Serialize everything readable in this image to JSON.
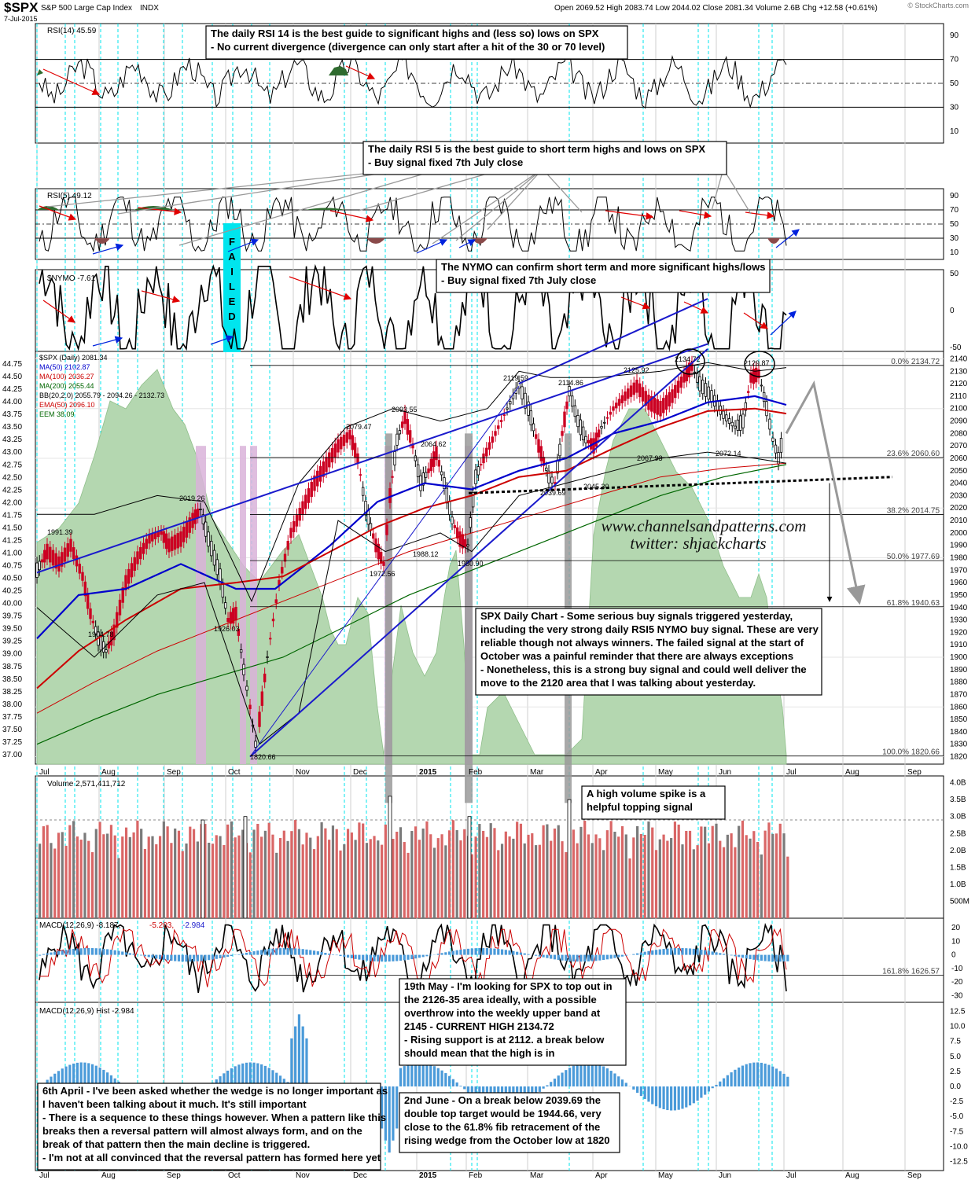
{
  "header": {
    "symbol": "$SPX",
    "name": "S&P 500 Large Cap Index",
    "exchange": "INDX",
    "date": "7-Jul-2015",
    "ohlc": "Open 2069.52  High 2083.74  Low 2044.02  Close 2081.34  Volume 2.6B  Chg +12.58 (+0.61%)",
    "brand": "© StockCharts.com",
    "brand_change_arrow": "▲"
  },
  "panels": {
    "rsi14": {
      "label": "RSI(14) 45.59",
      "ticks": [
        "90",
        "70",
        "50",
        "30",
        "10"
      ]
    },
    "rsi5": {
      "label": "RSI(5) 49.12",
      "ticks": [
        "90",
        "70",
        "50",
        "30",
        "10"
      ]
    },
    "nymo": {
      "label": "$NYMO -7.61",
      "ticks": [
        "50",
        "0",
        "-50"
      ]
    },
    "price": {
      "legend": [
        {
          "text": "$SPX (Daily) 2081.34",
          "color": "#000000"
        },
        {
          "text": "MA(50) 2102.87",
          "color": "#0000cc"
        },
        {
          "text": "MA(100) 2036.27",
          "color": "#cc0000"
        },
        {
          "text": "MA(200) 2055.44",
          "color": "#006600"
        },
        {
          "text": "BB(20,2.0) 2055.79 - 2094.26 - 2132.73",
          "color": "#000000"
        },
        {
          "text": "EMA(50) 2096.10",
          "color": "#cc0000"
        },
        {
          "text": "EEM 38.09",
          "color": "#006600"
        }
      ],
      "left_ticks": [
        "44.75",
        "44.50",
        "44.25",
        "44.00",
        "43.75",
        "43.50",
        "43.25",
        "43.00",
        "42.75",
        "42.50",
        "42.25",
        "42.00",
        "41.75",
        "41.50",
        "41.25",
        "41.00",
        "40.75",
        "40.50",
        "40.25",
        "40.00",
        "39.75",
        "39.50",
        "39.25",
        "39.00",
        "38.75",
        "38.50",
        "38.25",
        "38.00",
        "37.75",
        "37.50",
        "37.25",
        "37.00"
      ],
      "right_ticks": [
        "2140",
        "2130",
        "2120",
        "2110",
        "2100",
        "2090",
        "2080",
        "2070",
        "2060",
        "2050",
        "2040",
        "2030",
        "2020",
        "2010",
        "2000",
        "1990",
        "1980",
        "1970",
        "1960",
        "1950",
        "1940",
        "1930",
        "1920",
        "1910",
        "1900",
        "1890",
        "1880",
        "1870",
        "1860",
        "1850",
        "1840",
        "1830",
        "1820"
      ],
      "fib": [
        "0.0% 2134.72",
        "23.6% 2060.60",
        "38.2% 2014.75",
        "50.0% 1977.69",
        "61.8% 1940.63",
        "100.0% 1820.66"
      ],
      "point_labels": [
        "1991.39",
        "2019.26",
        "1904.78",
        "1926.03",
        "1820.66",
        "2079.47",
        "2093.55",
        "1972.56",
        "2064.62",
        "1988.12",
        "1980.90",
        "2119.59",
        "2114.86",
        "2039.69",
        "2045.30",
        "2125.92",
        "2134.72",
        "2067.93",
        "2129.87",
        "2072.14"
      ],
      "watermark_1": "www.channelsandpatterns.com",
      "watermark_2": "twitter: shjackcharts",
      "failed_label": "FAILED"
    },
    "volume": {
      "label": "Volume 2,571,411,712",
      "ticks": [
        "4.0B",
        "3.5B",
        "3.0B",
        "2.5B",
        "2.0B",
        "1.5B",
        "1.0B",
        "500M"
      ]
    },
    "macd": {
      "label_a": "MACD(12,26,9) -8.187,",
      "label_b": "-5.203,",
      "label_c": "-2.984",
      "ticks": [
        "20",
        "10",
        "0",
        "-10",
        "-20",
        "-30"
      ],
      "fib": "161.8% 1626.57"
    },
    "hist": {
      "label": "MACD(12,26,9) Hist -2.984",
      "ticks": [
        "12.5",
        "10.0",
        "7.5",
        "5.0",
        "2.5",
        "0.0",
        "-2.5",
        "-5.0",
        "-7.5",
        "-10.0",
        "-12.5"
      ]
    },
    "months": [
      "Jul",
      "Aug",
      "Sep",
      "Oct",
      "Nov",
      "Dec",
      "2015",
      "Feb",
      "Mar",
      "Apr",
      "May",
      "Jun",
      "Jul",
      "Aug",
      "Sep"
    ]
  },
  "annotations": {
    "rsi14_note": [
      "The daily RSI 14 is the best guide to significant highs and (less so) lows on SPX",
      "- No current divergence (divergence can only start after a hit of the 30 or 70 level)"
    ],
    "rsi5_note": [
      "The daily RSI 5 is the best guide to short term highs and lows on SPX",
      "- Buy signal fixed 7th July close"
    ],
    "nymo_note": [
      "The NYMO can confirm short term and more significant highs/lows",
      "- Buy signal fixed 7th July close"
    ],
    "daily_note": [
      "SPX Daily Chart - Some serious buy signals triggered yesterday,",
      "including the very strong daily RSI5 NYMO buy signal. These are very",
      "reliable though not always winners. The failed signal at the start of",
      "October was a painful reminder that there are always exceptions",
      "- Nonetheless, this is a strong buy signal and could well deliver the",
      "move to the 2120 area that I was talking about yesterday."
    ],
    "volume_note": [
      "A high volume spike is a",
      "helpful topping signal"
    ],
    "may_note": [
      "19th May - I'm looking for SPX to top out in",
      "the 2126-35 area ideally, with a possible",
      "overthrow into the weekly upper band at",
      "2145 - CURRENT HIGH 2134.72",
      "- Rising support is at 2112. a break below",
      "should mean that the high is in"
    ],
    "april_note": [
      "6th April - I've been asked whether the wedge is no longer important as",
      "I haven't been talking about it much.  It's still important",
      "- There is a sequence to these things however. When a pattern like this",
      "breaks then a reversal pattern will almost always form, and on the",
      "break of that pattern then the main decline is triggered.",
      "- I'm not at all convinced that the reversal pattern has formed here yet"
    ],
    "june_note": [
      "2nd June - On a break below 2039.69 the",
      "double top target would be 1944.66, very",
      "close to the 61.8% fib retracement of the",
      "rising wedge from the October low at 1820"
    ]
  },
  "colors": {
    "up": "#000000",
    "down": "#cc0022",
    "area": "#b4d7b0",
    "ma50": "#0000cc",
    "ma100": "#cc0000",
    "ma200": "#006600",
    "pink": "#d9b3d9",
    "cyan": "#00e5ee",
    "vol_up": "#7a7a7a",
    "vol_down": "#d96666",
    "hist": "#4a9ad9"
  },
  "chart_data": {
    "type": "line",
    "title": "$SPX S&P 500 Large Cap Index INDX",
    "x": [
      "Jul",
      "Aug",
      "Sep",
      "Oct",
      "Nov",
      "Dec",
      "2015",
      "Feb",
      "Mar",
      "Apr",
      "May",
      "Jun",
      "Jul"
    ],
    "series": [
      {
        "name": "$SPX (Daily)",
        "values": [
          1985,
          1930,
          2005,
          1870,
          2020,
          2065,
          2035,
          2040,
          2085,
          2070,
          2115,
          2100,
          2081.34
        ]
      },
      {
        "name": "MA(50)",
        "values": [
          1960,
          1955,
          1975,
          1935,
          1950,
          2020,
          2050,
          2040,
          2060,
          2075,
          2100,
          2110,
          2102.87
        ]
      },
      {
        "name": "MA(200)",
        "values": [
          1860,
          1880,
          1895,
          1900,
          1925,
          1955,
          1985,
          2000,
          2015,
          2030,
          2045,
          2052,
          2055.44
        ]
      }
    ],
    "ylim": [
      1820,
      2140
    ],
    "key_levels": [
      {
        "label": "0.0%",
        "value": 2134.72
      },
      {
        "label": "23.6%",
        "value": 2060.6
      },
      {
        "label": "38.2%",
        "value": 2014.75
      },
      {
        "label": "50.0%",
        "value": 1977.69
      },
      {
        "label": "61.8%",
        "value": 1940.63
      },
      {
        "label": "100.0%",
        "value": 1820.66
      }
    ]
  }
}
